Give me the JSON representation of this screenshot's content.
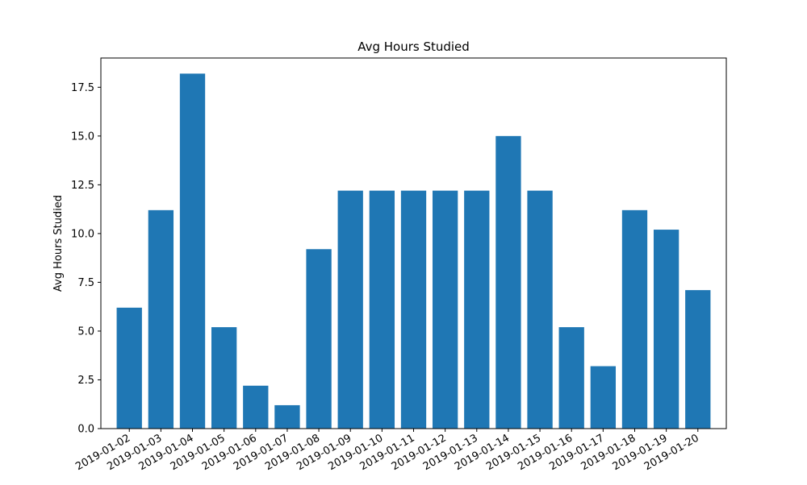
{
  "chart_data": {
    "type": "bar",
    "title": "Avg Hours Studied",
    "xlabel": "",
    "ylabel": "Avg Hours Studied",
    "categories": [
      "2019-01-02",
      "2019-01-03",
      "2019-01-04",
      "2019-01-05",
      "2019-01-06",
      "2019-01-07",
      "2019-01-08",
      "2019-01-09",
      "2019-01-10",
      "2019-01-11",
      "2019-01-12",
      "2019-01-13",
      "2019-01-14",
      "2019-01-15",
      "2019-01-16",
      "2019-01-17",
      "2019-01-18",
      "2019-01-19",
      "2019-01-20"
    ],
    "values": [
      6.2,
      11.2,
      18.2,
      5.2,
      2.2,
      1.2,
      9.2,
      12.2,
      12.2,
      12.2,
      12.2,
      12.2,
      15.0,
      12.2,
      5.2,
      3.2,
      11.2,
      10.2,
      7.1
    ],
    "ylim": [
      0,
      19.0
    ],
    "yticks": [
      0.0,
      2.5,
      5.0,
      7.5,
      10.0,
      12.5,
      15.0,
      17.5
    ],
    "ytick_labels": [
      "0.0",
      "2.5",
      "5.0",
      "7.5",
      "10.0",
      "12.5",
      "15.0",
      "17.5"
    ],
    "grid": false,
    "bar_color": "#1f77b4"
  }
}
